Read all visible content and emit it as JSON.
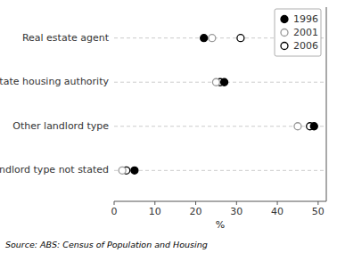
{
  "chart_data": {
    "type": "dot",
    "orientation": "horizontal",
    "categories": [
      "Real estate agent",
      "State housing authority",
      "Other landlord type",
      "Landlord type not stated"
    ],
    "series": [
      {
        "name": "1996",
        "color": "#000000",
        "marker": "filled_circle",
        "values": [
          22.0,
          27.0,
          49.0,
          5.0
        ]
      },
      {
        "name": "2001",
        "color": "#999999",
        "marker": "open_circle",
        "values": [
          24.0,
          25.0,
          45.0,
          2.0
        ]
      },
      {
        "name": "2006",
        "color": "#000000",
        "marker": "open_circle",
        "values": [
          31.0,
          26.0,
          48.0,
          3.0
        ]
      }
    ],
    "xlabel": "%",
    "xlim": [
      0,
      52
    ],
    "xticks": [
      0,
      10,
      20,
      30,
      40,
      50
    ],
    "grid": true,
    "legend": "upper right",
    "source": "Source: ABS: Census of Population and Housing"
  }
}
